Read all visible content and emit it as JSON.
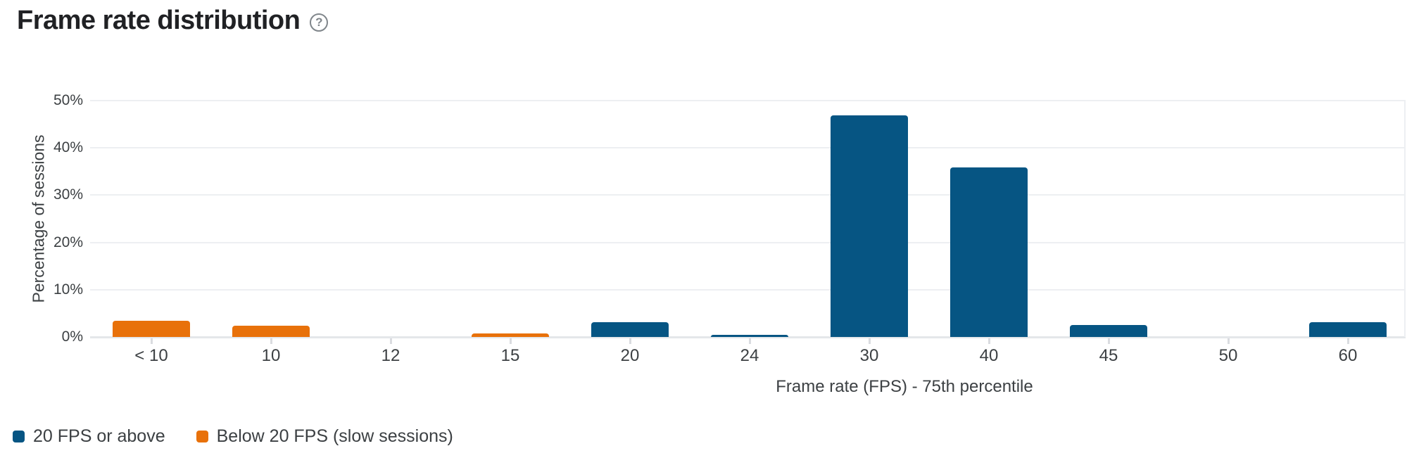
{
  "header": {
    "title": "Frame rate distribution",
    "help_icon": "help-circle"
  },
  "chart_data": {
    "type": "bar",
    "title": "Frame rate distribution",
    "categories": [
      "< 10",
      "10",
      "12",
      "15",
      "20",
      "24",
      "30",
      "40",
      "45",
      "50",
      "60"
    ],
    "series": [
      {
        "name": "20 FPS or above",
        "color": "#065583",
        "values": [
          0,
          0,
          0,
          0,
          3.1,
          0.5,
          46.9,
          35.9,
          2.6,
          0,
          3.1
        ]
      },
      {
        "name": "Below 20 FPS (slow sessions)",
        "color": "#e8710a",
        "values": [
          3.4,
          2.4,
          0,
          0.8,
          0,
          0,
          0,
          0,
          0,
          0,
          0
        ]
      }
    ],
    "xlabel": "Frame rate (FPS) - 75th percentile",
    "ylabel": "Percentage of sessions",
    "ylim": [
      0,
      50
    ],
    "yticks": [
      "0%",
      "10%",
      "20%",
      "30%",
      "40%",
      "50%"
    ],
    "grid": "horizontal",
    "legend_position": "bottom-left"
  },
  "legend": {
    "items": [
      {
        "label": "20 FPS or above",
        "color": "#065583"
      },
      {
        "label": "Below 20 FPS (slow sessions)",
        "color": "#e8710a"
      }
    ]
  },
  "icons": {
    "help": "?"
  }
}
